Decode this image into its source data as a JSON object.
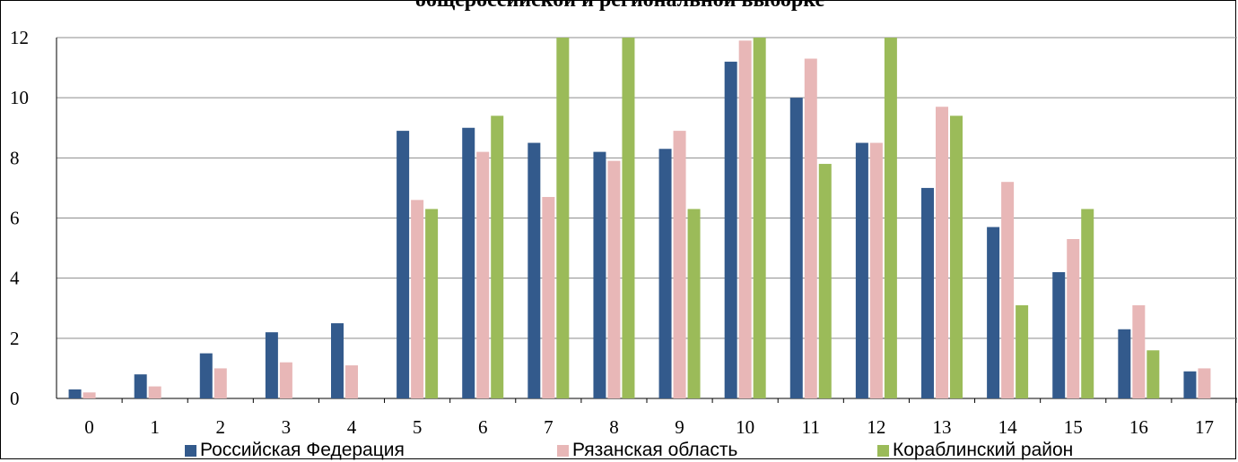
{
  "chart_data": {
    "type": "bar",
    "title": "общероссийской и региональной выборке",
    "categories": [
      "0",
      "1",
      "2",
      "3",
      "4",
      "5",
      "6",
      "7",
      "8",
      "9",
      "10",
      "11",
      "12",
      "13",
      "14",
      "15",
      "16",
      "17"
    ],
    "series": [
      {
        "name": "Российская Федерация",
        "color": "#335a8c",
        "values": [
          0.3,
          0.8,
          1.5,
          2.2,
          2.5,
          8.9,
          9.0,
          8.5,
          8.2,
          8.3,
          11.2,
          10.0,
          8.5,
          7.0,
          5.7,
          4.2,
          2.3,
          0.9
        ]
      },
      {
        "name": "Рязанская область",
        "color": "#e8b7b7",
        "values": [
          0.2,
          0.4,
          1.0,
          1.2,
          1.1,
          6.6,
          8.2,
          6.7,
          7.9,
          8.9,
          11.9,
          11.3,
          8.5,
          9.7,
          7.2,
          5.3,
          3.1,
          1.0
        ]
      },
      {
        "name": "Кораблинский район",
        "color": "#9bbb59",
        "values": [
          0,
          0,
          0,
          0,
          0,
          6.3,
          9.4,
          12,
          12,
          6.3,
          12,
          7.8,
          12,
          9.4,
          3.1,
          6.3,
          1.6,
          0
        ]
      }
    ],
    "ylim": [
      0,
      12
    ],
    "yticks": [
      "0",
      "2",
      "4",
      "6",
      "8",
      "10",
      "12"
    ],
    "grid": true,
    "legend": "bottom"
  }
}
